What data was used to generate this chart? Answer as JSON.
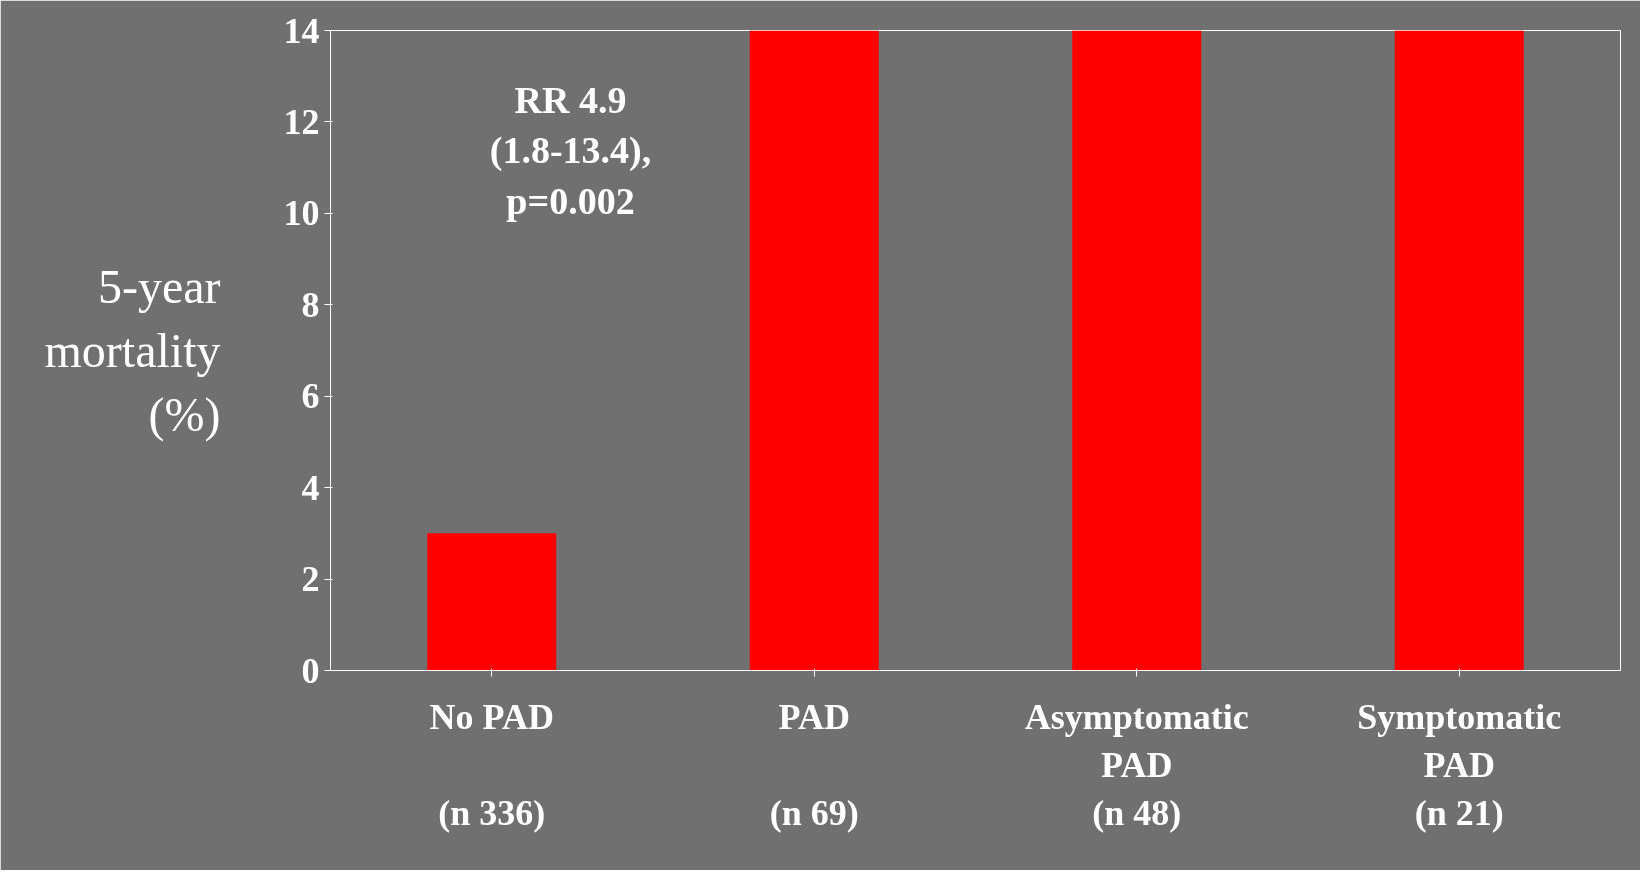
{
  "chart_data": {
    "type": "bar",
    "ylabel": "5-year\nmortality\n(%)",
    "categories": [
      "No PAD\n\n(n 336)",
      "PAD\n\n(n 69)",
      "Asymptomatic\nPAD\n(n 48)",
      "Symptomatic\nPAD\n(n 21)"
    ],
    "values": [
      3.0,
      14.0,
      14.0,
      14.0
    ],
    "color": "#ff0000",
    "ylim": [
      0,
      14
    ],
    "yticks": [
      0,
      2,
      4,
      6,
      8,
      10,
      12,
      14
    ],
    "annotations": [
      "RR 4.9\n(1.8-13.4),\np=0.002"
    ],
    "grid": false
  }
}
